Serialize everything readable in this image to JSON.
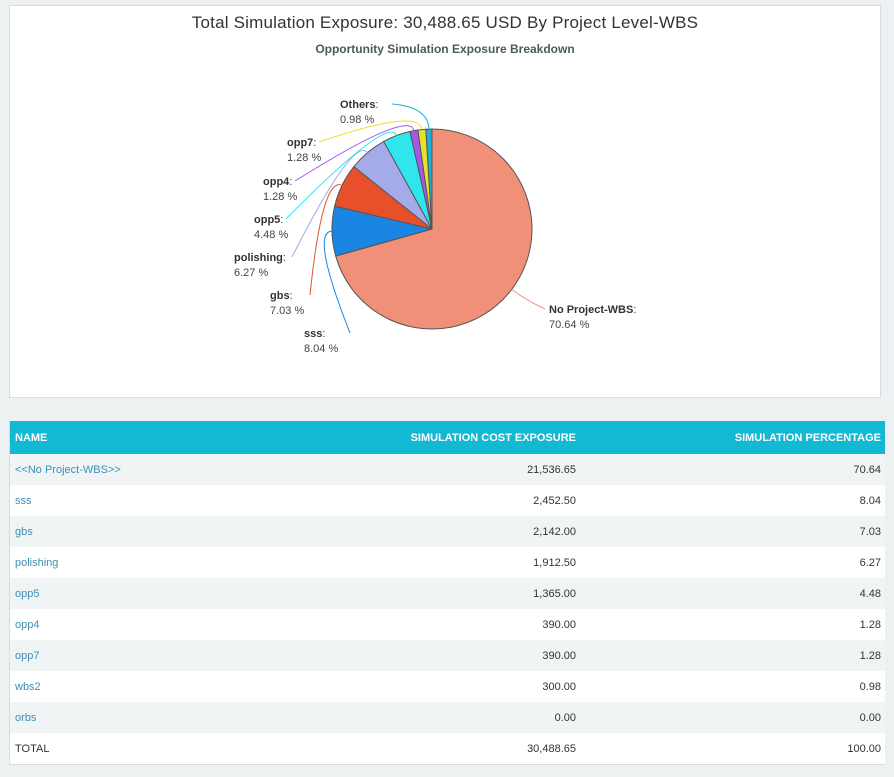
{
  "chart_data": {
    "type": "pie",
    "title": "Total Simulation Exposure: 30,488.65 USD By Project Level-WBS",
    "subtitle": "Opportunity Simulation Exposure Breakdown",
    "slices": [
      {
        "name": "No Project-WBS",
        "value": 70.64,
        "pct_label": "70.64 %",
        "color": "#f09078"
      },
      {
        "name": "sss",
        "value": 8.04,
        "pct_label": "8.04 %",
        "color": "#1a86e2"
      },
      {
        "name": "gbs",
        "value": 7.03,
        "pct_label": "7.03 %",
        "color": "#e8502c"
      },
      {
        "name": "polishing",
        "value": 6.27,
        "pct_label": "6.27 %",
        "color": "#a5aae8"
      },
      {
        "name": "opp5",
        "value": 4.48,
        "pct_label": "4.48 %",
        "color": "#2fe6ec"
      },
      {
        "name": "opp4",
        "value": 1.28,
        "pct_label": "1.28 %",
        "color": "#a45ae8"
      },
      {
        "name": "opp7",
        "value": 1.28,
        "pct_label": "1.28 %",
        "color": "#e8e02a"
      },
      {
        "name": "Others",
        "value": 0.98,
        "pct_label": "0.98 %",
        "color": "#1ab0d8"
      }
    ]
  },
  "table": {
    "headers": [
      "NAME",
      "SIMULATION COST EXPOSURE",
      "SIMULATION PERCENTAGE"
    ],
    "rows": [
      {
        "name": "<<No Project-WBS>>",
        "cost": "21,536.65",
        "pct": "70.64",
        "link": true
      },
      {
        "name": "sss",
        "cost": "2,452.50",
        "pct": "8.04",
        "link": true
      },
      {
        "name": "gbs",
        "cost": "2,142.00",
        "pct": "7.03",
        "link": true
      },
      {
        "name": "polishing",
        "cost": "1,912.50",
        "pct": "6.27",
        "link": true
      },
      {
        "name": "opp5",
        "cost": "1,365.00",
        "pct": "4.48",
        "link": true
      },
      {
        "name": "opp4",
        "cost": "390.00",
        "pct": "1.28",
        "link": true
      },
      {
        "name": "opp7",
        "cost": "390.00",
        "pct": "1.28",
        "link": true
      },
      {
        "name": "wbs2",
        "cost": "300.00",
        "pct": "0.98",
        "link": true
      },
      {
        "name": "orbs",
        "cost": "0.00",
        "pct": "0.00",
        "link": true
      },
      {
        "name": "TOTAL",
        "cost": "30,488.65",
        "pct": "100.00",
        "link": false
      }
    ]
  }
}
